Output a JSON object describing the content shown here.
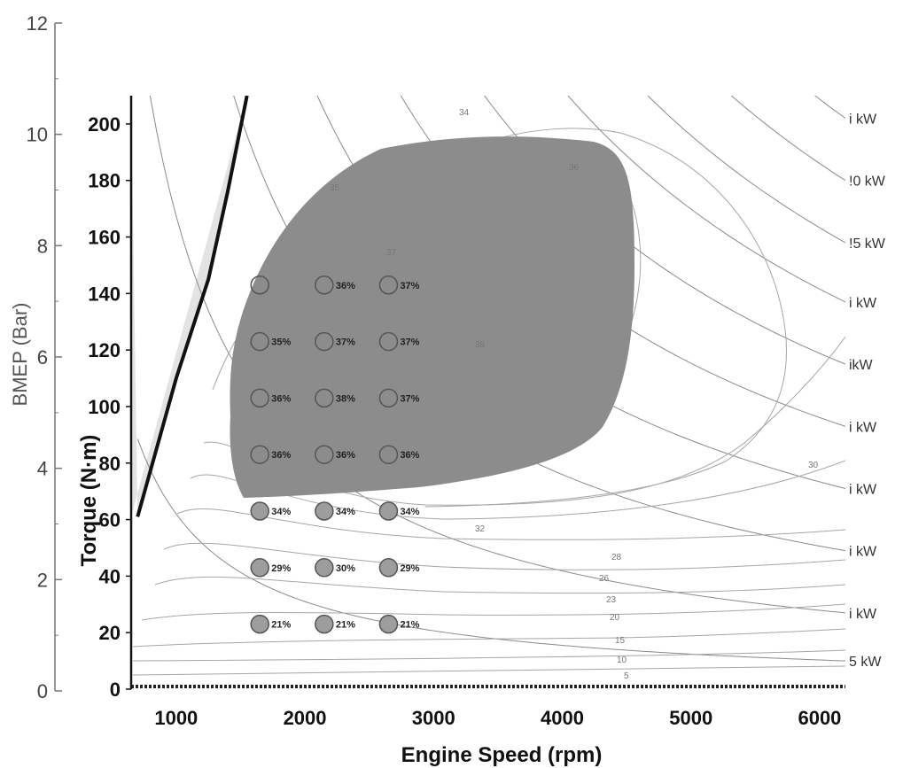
{
  "chart_data": {
    "type": "scatter",
    "title": "",
    "xlabel": "Engine Speed (rpm)",
    "ylabel_left": "BMEP (Bar)",
    "ylabel_right": "Torque (N·m)",
    "xlim": [
      650,
      6200
    ],
    "ylim_torque": [
      0,
      210
    ],
    "ylim_bmep": [
      0,
      12
    ],
    "x_ticks": [
      "1000",
      "2000",
      "3000",
      "4000",
      "5000",
      "6000"
    ],
    "torque_ticks": [
      "0",
      "20",
      "40",
      "60",
      "80",
      "100",
      "120",
      "140",
      "160",
      "180",
      "200"
    ],
    "bmep_ticks": [
      "0",
      "2",
      "4",
      "6",
      "8",
      "10",
      "12"
    ],
    "grid": false,
    "operating_points": [
      {
        "rpm": 1650,
        "torque": 143,
        "label": ""
      },
      {
        "rpm": 2150,
        "torque": 143,
        "label": "36%"
      },
      {
        "rpm": 2650,
        "torque": 143,
        "label": "37%"
      },
      {
        "rpm": 1650,
        "torque": 123,
        "label": "35%"
      },
      {
        "rpm": 2150,
        "torque": 123,
        "label": "37%"
      },
      {
        "rpm": 2650,
        "torque": 123,
        "label": "37%"
      },
      {
        "rpm": 1650,
        "torque": 103,
        "label": "36%"
      },
      {
        "rpm": 2150,
        "torque": 103,
        "label": "38%"
      },
      {
        "rpm": 2650,
        "torque": 103,
        "label": "37%"
      },
      {
        "rpm": 1650,
        "torque": 83,
        "label": "36%"
      },
      {
        "rpm": 2150,
        "torque": 83,
        "label": "36%"
      },
      {
        "rpm": 2650,
        "torque": 83,
        "label": "36%"
      },
      {
        "rpm": 1650,
        "torque": 63,
        "label": "34%"
      },
      {
        "rpm": 2150,
        "torque": 63,
        "label": "34%"
      },
      {
        "rpm": 2650,
        "torque": 63,
        "label": "34%"
      },
      {
        "rpm": 1650,
        "torque": 43,
        "label": "29%"
      },
      {
        "rpm": 2150,
        "torque": 43,
        "label": "30%"
      },
      {
        "rpm": 2650,
        "torque": 43,
        "label": "29%"
      },
      {
        "rpm": 1650,
        "torque": 23,
        "label": "21%"
      },
      {
        "rpm": 2150,
        "torque": 23,
        "label": "21%"
      },
      {
        "rpm": 2650,
        "torque": 23,
        "label": "21%"
      }
    ],
    "contour_labels": [
      "38",
      "37",
      "36",
      "35",
      "34",
      "32",
      "30",
      "28",
      "26",
      "23",
      "20",
      "15",
      "10",
      "5"
    ],
    "power_labels": [
      {
        "label": "i kW",
        "torque": 202
      },
      {
        "label": "!0 kW",
        "torque": 180
      },
      {
        "label": "!5 kW",
        "torque": 158
      },
      {
        "label": "i kW",
        "torque": 137
      },
      {
        "label": "ikW",
        "torque": 115
      },
      {
        "label": "i kW",
        "torque": 93
      },
      {
        "label": "i kW",
        "torque": 71
      },
      {
        "label": "i kW",
        "torque": 49
      },
      {
        "label": "i kW",
        "torque": 27
      },
      {
        "label": "5 kW",
        "torque": 10
      }
    ],
    "full_load_curve": [
      [
        700,
        61
      ],
      [
        1000,
        110
      ],
      [
        1250,
        145
      ],
      [
        1400,
        176
      ],
      [
        1550,
        210
      ]
    ],
    "high_efficiency_region": "dark shaded region, approx. 1450–4500 rpm, 70–190 N·m"
  },
  "colors": {
    "region_fill": "#8c8c8c",
    "light_region_fill": "#e3e3e3",
    "point_fill": "#9d9d9d",
    "contour": "#a6a6a6",
    "full_load": "#111111"
  }
}
